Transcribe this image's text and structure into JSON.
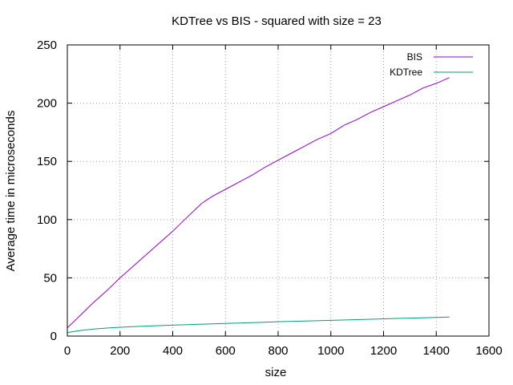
{
  "chart_data": {
    "type": "line",
    "title": "KDTree vs BIS - squared with size = 23",
    "xlabel": "size",
    "ylabel": "Average time in microseconds",
    "xlim": [
      0,
      1600
    ],
    "ylim": [
      0,
      250
    ],
    "xticks": [
      "0",
      "200",
      "400",
      "600",
      "800",
      "1000",
      "1200",
      "1400",
      "1600"
    ],
    "yticks": [
      "0",
      "50",
      "100",
      "150",
      "200",
      "250"
    ],
    "grid": true,
    "legend_position": "top-right",
    "series": [
      {
        "name": "BIS",
        "color": "#9400d3",
        "x": [
          0,
          50,
          100,
          150,
          200,
          250,
          300,
          350,
          400,
          450,
          510,
          550,
          600,
          650,
          700,
          750,
          800,
          850,
          900,
          950,
          1000,
          1050,
          1100,
          1150,
          1200,
          1250,
          1300,
          1350,
          1400,
          1450
        ],
        "y": [
          7,
          18,
          29,
          39,
          50,
          60,
          70,
          80,
          90,
          101,
          114,
          120,
          126,
          132,
          138,
          145,
          151,
          157,
          163,
          169,
          174,
          181,
          186,
          192,
          197,
          202,
          207,
          213,
          217,
          222
        ]
      },
      {
        "name": "KDTree",
        "color": "#009e73",
        "x": [
          0,
          50,
          100,
          150,
          200,
          300,
          400,
          500,
          600,
          700,
          800,
          900,
          1000,
          1100,
          1200,
          1300,
          1400,
          1450
        ],
        "y": [
          3,
          4.8,
          6,
          6.9,
          7.6,
          8.6,
          9.4,
          10.1,
          10.9,
          11.6,
          12.3,
          12.9,
          13.5,
          14.1,
          14.8,
          15.4,
          16,
          16.3
        ]
      }
    ]
  }
}
